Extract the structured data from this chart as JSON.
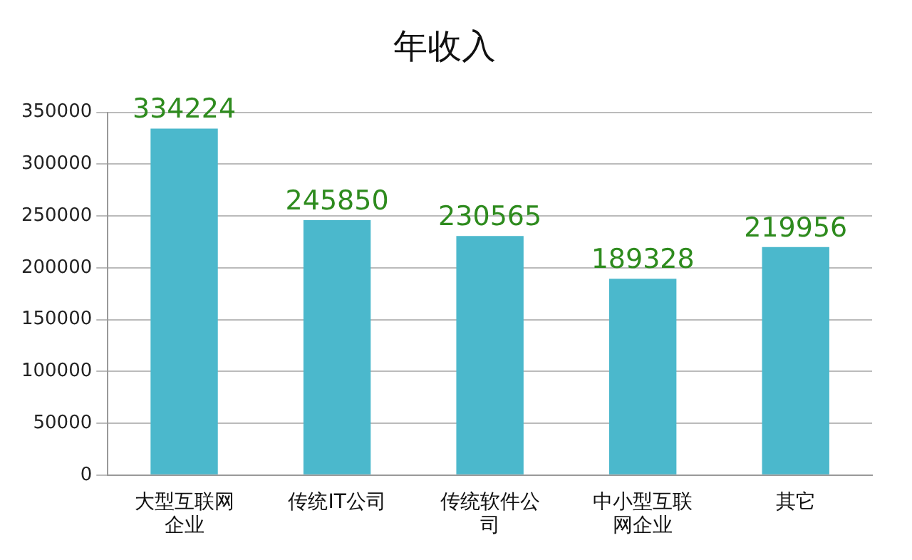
{
  "chart_data": {
    "type": "bar",
    "title": "年收入",
    "categories": [
      "大型互联网企业",
      "传统IT公司",
      "传统软件公司",
      "中小型互联网企业",
      "其它"
    ],
    "values": [
      334224,
      245850,
      230565,
      189328,
      219956
    ],
    "color": "#4bb8cc",
    "ylim": [
      0,
      350000
    ],
    "yticks": [
      0,
      50000,
      100000,
      150000,
      200000,
      250000,
      300000,
      350000
    ],
    "grid": "y",
    "legend": false,
    "data_labels": true
  }
}
